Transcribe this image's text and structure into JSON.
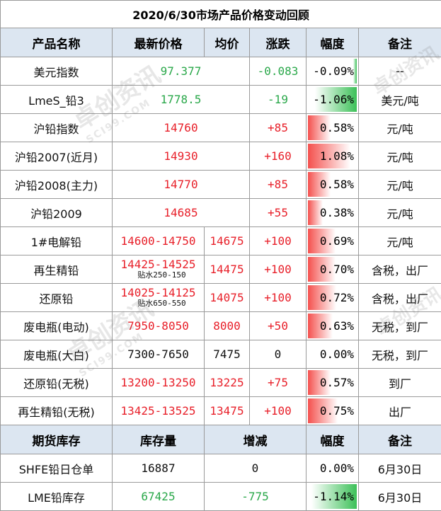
{
  "title": "2020/6/30市场产品价格变动回顾",
  "headers": [
    "产品名称",
    "最新价格",
    "均价",
    "涨跌",
    "幅度",
    "备注"
  ],
  "rows": [
    {
      "name": "美元指数",
      "price": "97.377",
      "avg": "",
      "change": "-0.083",
      "pct": "-0.09%",
      "pct_value": -0.09,
      "note": "--",
      "color": "green"
    },
    {
      "name": "LmeS_铅3",
      "price": "1778.5",
      "avg": "",
      "change": "-19",
      "pct": "-1.06%",
      "pct_value": -1.06,
      "note": "美元/吨",
      "color": "green"
    },
    {
      "name": "沪铅指数",
      "price": "14760",
      "avg": "",
      "change": "+85",
      "pct": "0.58%",
      "pct_value": 0.58,
      "note": "元/吨",
      "color": "red"
    },
    {
      "name": "沪铅2007(近月)",
      "price": "14930",
      "avg": "",
      "change": "+160",
      "pct": "1.08%",
      "pct_value": 1.08,
      "note": "元/吨",
      "color": "red"
    },
    {
      "name": "沪铅2008(主力)",
      "price": "14770",
      "avg": "",
      "change": "+85",
      "pct": "0.58%",
      "pct_value": 0.58,
      "note": "元/吨",
      "color": "red"
    },
    {
      "name": "沪铅2009",
      "price": "14685",
      "avg": "",
      "change": "+55",
      "pct": "0.38%",
      "pct_value": 0.38,
      "note": "元/吨",
      "color": "red"
    },
    {
      "name": "1#电解铅",
      "price": "14600-14750",
      "avg": "14675",
      "change": "+100",
      "pct": "0.69%",
      "pct_value": 0.69,
      "note": "元/吨",
      "color": "red"
    },
    {
      "name": "再生精铅",
      "price": "14425-14525",
      "price_sub": "贴水250-150",
      "avg": "14475",
      "change": "+100",
      "pct": "0.70%",
      "pct_value": 0.7,
      "note": "含税，出厂",
      "color": "red"
    },
    {
      "name": "还原铅",
      "price": "14025-14125",
      "price_sub": "贴水650-550",
      "avg": "14075",
      "change": "+100",
      "pct": "0.72%",
      "pct_value": 0.72,
      "note": "含税，出厂",
      "color": "red"
    },
    {
      "name": "废电瓶(电动)",
      "price": "7950-8050",
      "avg": "8000",
      "change": "+50",
      "pct": "0.63%",
      "pct_value": 0.63,
      "note": "无税，到厂",
      "color": "red"
    },
    {
      "name": "废电瓶(大白)",
      "price": "7300-7650",
      "avg": "7475",
      "change": "0",
      "pct": "0.00%",
      "pct_value": 0.0,
      "note": "无税，到厂",
      "color": "black"
    },
    {
      "name": "还原铅(无税)",
      "price": "13200-13250",
      "avg": "13225",
      "change": "+75",
      "pct": "0.57%",
      "pct_value": 0.57,
      "note": "到厂",
      "color": "red"
    },
    {
      "name": "再生精铅(无税)",
      "price": "13425-13525",
      "avg": "13475",
      "change": "+100",
      "pct": "0.75%",
      "pct_value": 0.75,
      "note": "出厂",
      "color": "red"
    }
  ],
  "inventory_headers": [
    "期货库存",
    "库存量",
    "增减",
    "幅度",
    "备注"
  ],
  "inventory_rows": [
    {
      "name": "SHFE铅日仓单",
      "qty": "16887",
      "change": "0",
      "pct": "0.00%",
      "pct_value": 0.0,
      "note": "6月30日",
      "color": "black"
    },
    {
      "name": "LME铅库存",
      "qty": "67425",
      "change": "-775",
      "pct": "-1.14%",
      "pct_value": -1.14,
      "note": "6月30日",
      "color": "green"
    }
  ],
  "watermark": {
    "brand": "卓创资讯",
    "domain": "SCI99.COM"
  },
  "colors": {
    "header_bg": "#dce6f1",
    "up": "#e8202a",
    "down": "#2aa84a"
  }
}
